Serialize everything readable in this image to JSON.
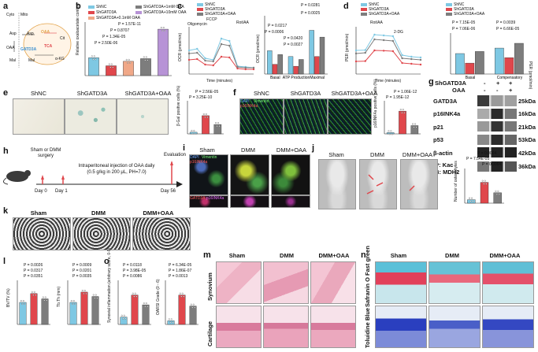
{
  "panels": {
    "a": {
      "label": "a",
      "cyto": "Cyto",
      "mito": "Mito",
      "asp1": "Asp",
      "asp2": "Asp",
      "oaa": "OAA",
      "cit": "Cit",
      "oaa_left": "OAA",
      "mal1": "Mal",
      "mal2": "Mal",
      "tca": "TCA",
      "akg": "α-KG",
      "gatd3a": "GATD3A"
    },
    "b": {
      "label": "b",
      "ylabel": "Relative oxaloacetate content",
      "legend": [
        "ShNC",
        "ShGATD3A",
        "ShGATD3A+1mM OAA",
        "ShGATD3A+10mM OAA",
        "ShGATD3A+0.1mM OAA"
      ],
      "pvals": [
        "P = 1.57E-11",
        "P = 0.8707",
        "P = 1.34E-05",
        "P = 2.50E-06"
      ]
    },
    "c": {
      "label": "c",
      "legend": [
        "ShNC",
        "ShGATD3A",
        "ShGATD3A+OAA"
      ],
      "ylabel": "OCR (pmol/min)",
      "xlabel": "Time (minutes)",
      "injections": [
        "Oligomycin",
        "FCCP",
        "Rot/AA"
      ],
      "bar_ylabel": "OCR (pmol/min)",
      "categories": [
        "Basal",
        "ATP Production",
        "Maximal"
      ],
      "pvals": [
        "P = 0.0281",
        "P = 0.0025",
        "P = 0.0217",
        "P = 0.0006",
        "P = 0.0420",
        "P = 0.0027"
      ]
    },
    "d": {
      "label": "d",
      "legend": [
        "ShNC",
        "ShGATD3A",
        "ShGATD3A+OAA"
      ],
      "ylabel": "PER (pmol/min)",
      "xlabel": "Time (minutes)",
      "injections": [
        "Rot/AA",
        "2-DG"
      ],
      "bar_ylabel": "PER (pmol/min)",
      "categories": [
        "Basal",
        "Compensatory"
      ],
      "pvals": [
        "P = 7.15E-05",
        "P = 7.06E-06",
        "P = 0.0039",
        "P = 6.66E-05"
      ]
    },
    "e": {
      "label": "e",
      "titles": [
        "ShNC",
        "ShGATD3A",
        "ShGATD3A+OAA"
      ],
      "ylabel": "β-Gal positive cells (%)",
      "categories": [
        "ShNC",
        "ShGATD3A",
        "ShGATD3A+OAA"
      ],
      "pvals": [
        "P = 2.56E-05",
        "P = 3.25E-10"
      ]
    },
    "f": {
      "label": "f",
      "titles": [
        "ShNC",
        "ShGATD3A",
        "ShGATD3A+OAA"
      ],
      "stain1": "DAPI",
      "stain2": "Vimentin",
      "stain3": "p16INK4a",
      "ylabel": "p16INK4a positive cells (%)",
      "categories": [
        "ShNC",
        "ShGATD3A",
        "ShGATD3A+OAA"
      ],
      "pvals": [
        "P = 1.06E-12",
        "P = 1.95E-12"
      ]
    },
    "g": {
      "label": "g",
      "row1": "ShGATD3A",
      "row2": "OAA",
      "signs1": [
        "-",
        "+",
        "+"
      ],
      "signs2": [
        "-",
        "-",
        "+"
      ],
      "bands": [
        "GATD3A",
        "p16INK4a",
        "p21",
        "p53",
        "β-actin"
      ],
      "sizes": [
        "25kDa",
        "16kDa",
        "21kDa",
        "53kDa",
        "42kDa",
        "36kDa"
      ],
      "ip": "IP: Kac",
      "ib": "IB: MDH2"
    },
    "h": {
      "label": "h",
      "surgery": "Sham or DMM surgery",
      "injection": "Intraperitoneal injection of OAA daily",
      "dose": "(0.5 g/kg in 200 μL, PH=7.0)",
      "evaluation": "Evaluation",
      "day0": "Day 0",
      "day1": "Day 1",
      "day56": "Day 56"
    },
    "i": {
      "label": "i",
      "titles": [
        "Sham",
        "DMM",
        "DMM+OAA"
      ],
      "stain1": "DAPI",
      "stain2": "Vimentin",
      "stain3": "p16INK4a",
      "stain4": "GATD3A",
      "stain5": "p16INK4a"
    },
    "j": {
      "label": "j",
      "titles": [
        "Sham",
        "DMM",
        "DMM+OAA"
      ],
      "ylabel": "Number of osteophytes",
      "categories": [
        "Sham",
        "DMM",
        "DMM+OAA"
      ],
      "pvals": [
        "P = 0.0004",
        "P = 7.54E-05",
        "P = 0.0064"
      ]
    },
    "k": {
      "label": "k",
      "titles": [
        "Sham",
        "DMM",
        "DMM+OAA"
      ]
    },
    "l": {
      "label": "l",
      "ylabel1": "BV/TV (%)",
      "ylabel2": "Tb.Th (mm)",
      "categories": [
        "Sham",
        "DMM",
        "DMM+OAA"
      ],
      "pvals1": [
        "P = 0.0026",
        "P = 0.0317",
        "P = 0.0351"
      ],
      "pvals2": [
        "P = 0.0009",
        "P = 0.0201",
        "P = 0.0035"
      ]
    },
    "o": {
      "label": "o",
      "ylabel1": "Synovial inflammation (arbitrary score, 0-9)",
      "ylabel2": "OARSI Grade (0 - 6)",
      "categories": [
        "Sham",
        "DMM",
        "DMM+OAA"
      ],
      "pvals1": [
        "P = 0.0118",
        "P = 3.98E-05",
        "P = 0.0086"
      ],
      "pvals2": [
        "P = 6.34E-05",
        "P = 1.86E-07",
        "P = 0.0013"
      ]
    },
    "m": {
      "label": "m",
      "titles": [
        "Sham",
        "DMM",
        "DMM+OAA"
      ],
      "row1": "Synovium",
      "row2": "Cartilage"
    },
    "n": {
      "label": "n",
      "titles": [
        "Sham",
        "DMM",
        "DMM+OAA"
      ],
      "row1": "Safranin O Fast green",
      "row2": "Toluidine Blue"
    }
  },
  "colors": {
    "shnc": "#7ec8e3",
    "shgatd3a": "#e0474c",
    "oaa": "#7d7d7d",
    "oaa10": "#b793d6",
    "oaa01": "#f0a888"
  },
  "chart_data": [
    {
      "type": "bar",
      "panel": "b",
      "categories": [
        "ShNC",
        "ShGATD3A",
        "ShGATD3A+0.1mM OAA",
        "ShGATD3A+1mM OAA",
        "ShGATD3A+10mM OAA"
      ],
      "values": [
        1.0,
        0.55,
        0.8,
        0.95,
        2.6
      ],
      "ylim": [
        0,
        3
      ]
    },
    {
      "type": "line",
      "panel": "c",
      "x": [
        0,
        10,
        20,
        30,
        40,
        50,
        60,
        70,
        80
      ],
      "series": [
        {
          "name": "ShNC",
          "values": [
            30,
            32,
            20,
            18,
            45,
            42,
            10,
            9,
            8
          ]
        },
        {
          "name": "ShGATD3A",
          "values": [
            18,
            19,
            12,
            11,
            22,
            21,
            7,
            6,
            6
          ]
        },
        {
          "name": "ShGATD3A+OAA",
          "values": [
            26,
            27,
            17,
            16,
            38,
            36,
            9,
            8,
            8
          ]
        }
      ],
      "ylim": [
        0,
        60
      ],
      "xlim": [
        0,
        80
      ]
    },
    {
      "type": "bar",
      "panel": "c-bar",
      "categories": [
        "Basal",
        "ATP Production",
        "Maximal"
      ],
      "series": [
        {
          "name": "ShNC",
          "values": [
            24,
            18,
            45
          ]
        },
        {
          "name": "ShGATD3A",
          "values": [
            10,
            8,
            18
          ]
        },
        {
          "name": "ShGATD3A+OAA",
          "values": [
            20,
            15,
            38
          ]
        }
      ],
      "ylim": [
        0,
        60
      ]
    },
    {
      "type": "line",
      "panel": "d",
      "x": [
        0,
        10,
        20,
        30,
        40,
        50,
        60,
        70
      ],
      "series": [
        {
          "name": "ShNC",
          "values": [
            150,
            152,
            250,
            245,
            240,
            120,
            110,
            105
          ]
        },
        {
          "name": "ShGATD3A",
          "values": [
            80,
            82,
            150,
            148,
            145,
            70,
            65,
            60
          ]
        },
        {
          "name": "ShGATD3A+OAA",
          "values": [
            130,
            135,
            220,
            215,
            210,
            100,
            95,
            90
          ]
        }
      ],
      "ylim": [
        0,
        300
      ],
      "xlim": [
        0,
        70
      ]
    },
    {
      "type": "bar",
      "panel": "d-bar",
      "categories": [
        "Basal",
        "Compensatory"
      ],
      "series": [
        {
          "name": "ShNC",
          "values": [
            150,
            190
          ]
        },
        {
          "name": "ShGATD3A",
          "values": [
            80,
            120
          ]
        },
        {
          "name": "ShGATD3A+OAA",
          "values": [
            165,
            225
          ]
        }
      ],
      "ylim": [
        0,
        300
      ]
    },
    {
      "type": "bar",
      "panel": "e",
      "categories": [
        "ShNC",
        "ShGATD3A",
        "ShGATD3A+OAA"
      ],
      "values": [
        3,
        33,
        17
      ],
      "ylim": [
        0,
        60
      ]
    },
    {
      "type": "bar",
      "panel": "f",
      "categories": [
        "ShNC",
        "ShGATD3A",
        "ShGATD3A+OAA"
      ],
      "values": [
        3,
        55,
        20
      ],
      "ylim": [
        0,
        80
      ]
    },
    {
      "type": "bar",
      "panel": "j",
      "categories": [
        "Sham",
        "DMM",
        "DMM+OAA"
      ],
      "values": [
        1,
        6,
        3
      ],
      "ylim": [
        0,
        10
      ]
    },
    {
      "type": "bar",
      "panel": "l1",
      "categories": [
        "Sham",
        "DMM",
        "DMM+OAA"
      ],
      "values": [
        25,
        35,
        29
      ],
      "ylim": [
        0,
        50
      ]
    },
    {
      "type": "bar",
      "panel": "l2",
      "categories": [
        "Sham",
        "DMM",
        "DMM+OAA"
      ],
      "values": [
        0.15,
        0.22,
        0.19
      ],
      "ylim": [
        0,
        0.3
      ]
    },
    {
      "type": "bar",
      "panel": "o1",
      "categories": [
        "Sham",
        "DMM",
        "DMM+OAA"
      ],
      "values": [
        1.5,
        6,
        4
      ],
      "ylim": [
        0,
        9
      ]
    },
    {
      "type": "bar",
      "panel": "o2",
      "categories": [
        "Sham",
        "DMM",
        "DMM+OAA"
      ],
      "values": [
        0.5,
        4,
        2.5
      ],
      "ylim": [
        0,
        6
      ]
    }
  ]
}
